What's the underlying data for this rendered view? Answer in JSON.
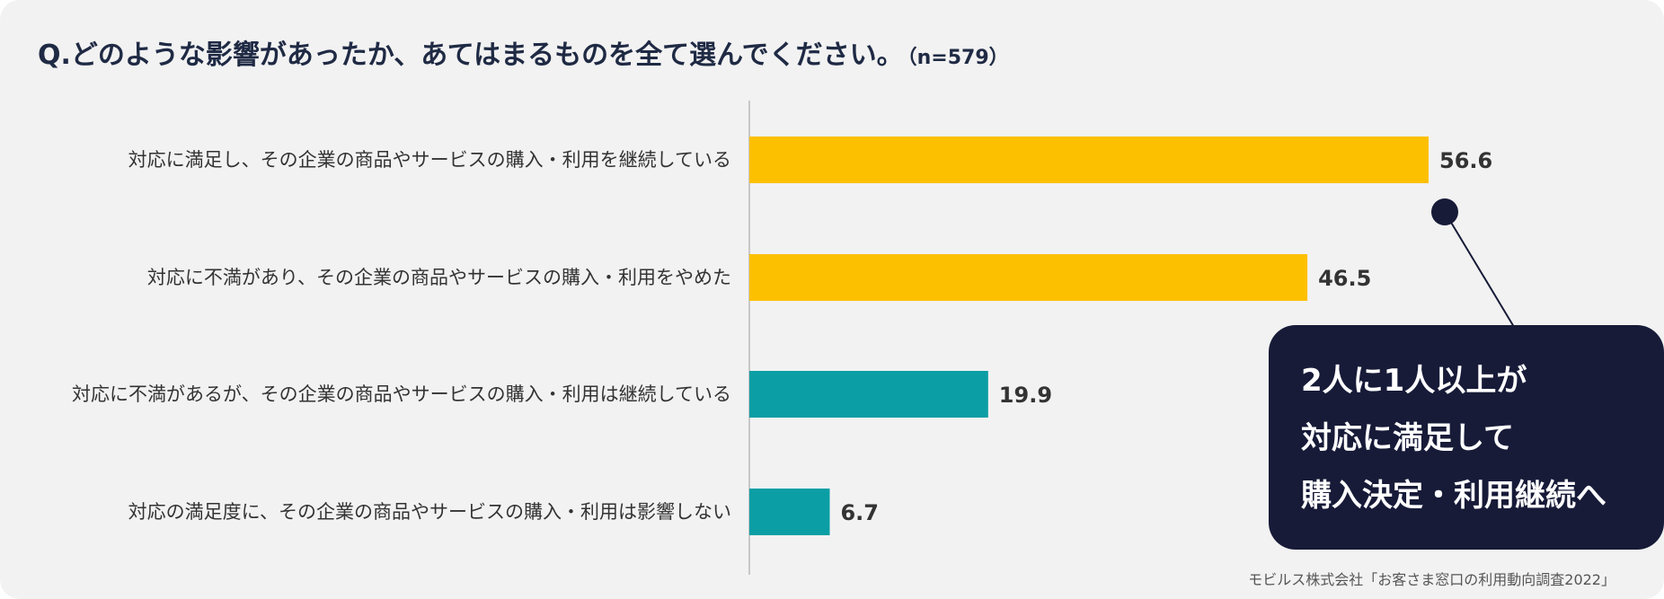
{
  "title": {
    "question": "Q.どのような影響があったか、あてはまるものを全て選んでください。",
    "sample": "（n=579）"
  },
  "chart_data": {
    "type": "bar",
    "orientation": "horizontal",
    "categories": [
      "対応に満足し、その企業の商品やサービスの購入・利用を継続している",
      "対応に不満があり、その企業の商品やサービスの購入・利用をやめた",
      "対応に不満があるが、その企業の商品やサービスの購入・利用は継続している",
      "対応の満足度に、その企業の商品やサービスの購入・利用は影響しない"
    ],
    "values": [
      56.6,
      46.5,
      19.9,
      6.7
    ],
    "value_labels": [
      "56.6",
      "46.5",
      "19.9",
      "6.7"
    ],
    "colors": [
      "#fdc000",
      "#fdc000",
      "#0b9ea4",
      "#0b9ea4"
    ],
    "xlim": [
      0,
      70
    ],
    "grid": false,
    "legend": "none"
  },
  "callout": {
    "lines": [
      "2人に1人以上が",
      "対応に満足して",
      "購入決定・利用継続へ"
    ],
    "background": "#171b38",
    "pointer_color": "#171b38"
  },
  "source": "モビルス株式会社「お客さま窓口の利用動向調査2022」"
}
